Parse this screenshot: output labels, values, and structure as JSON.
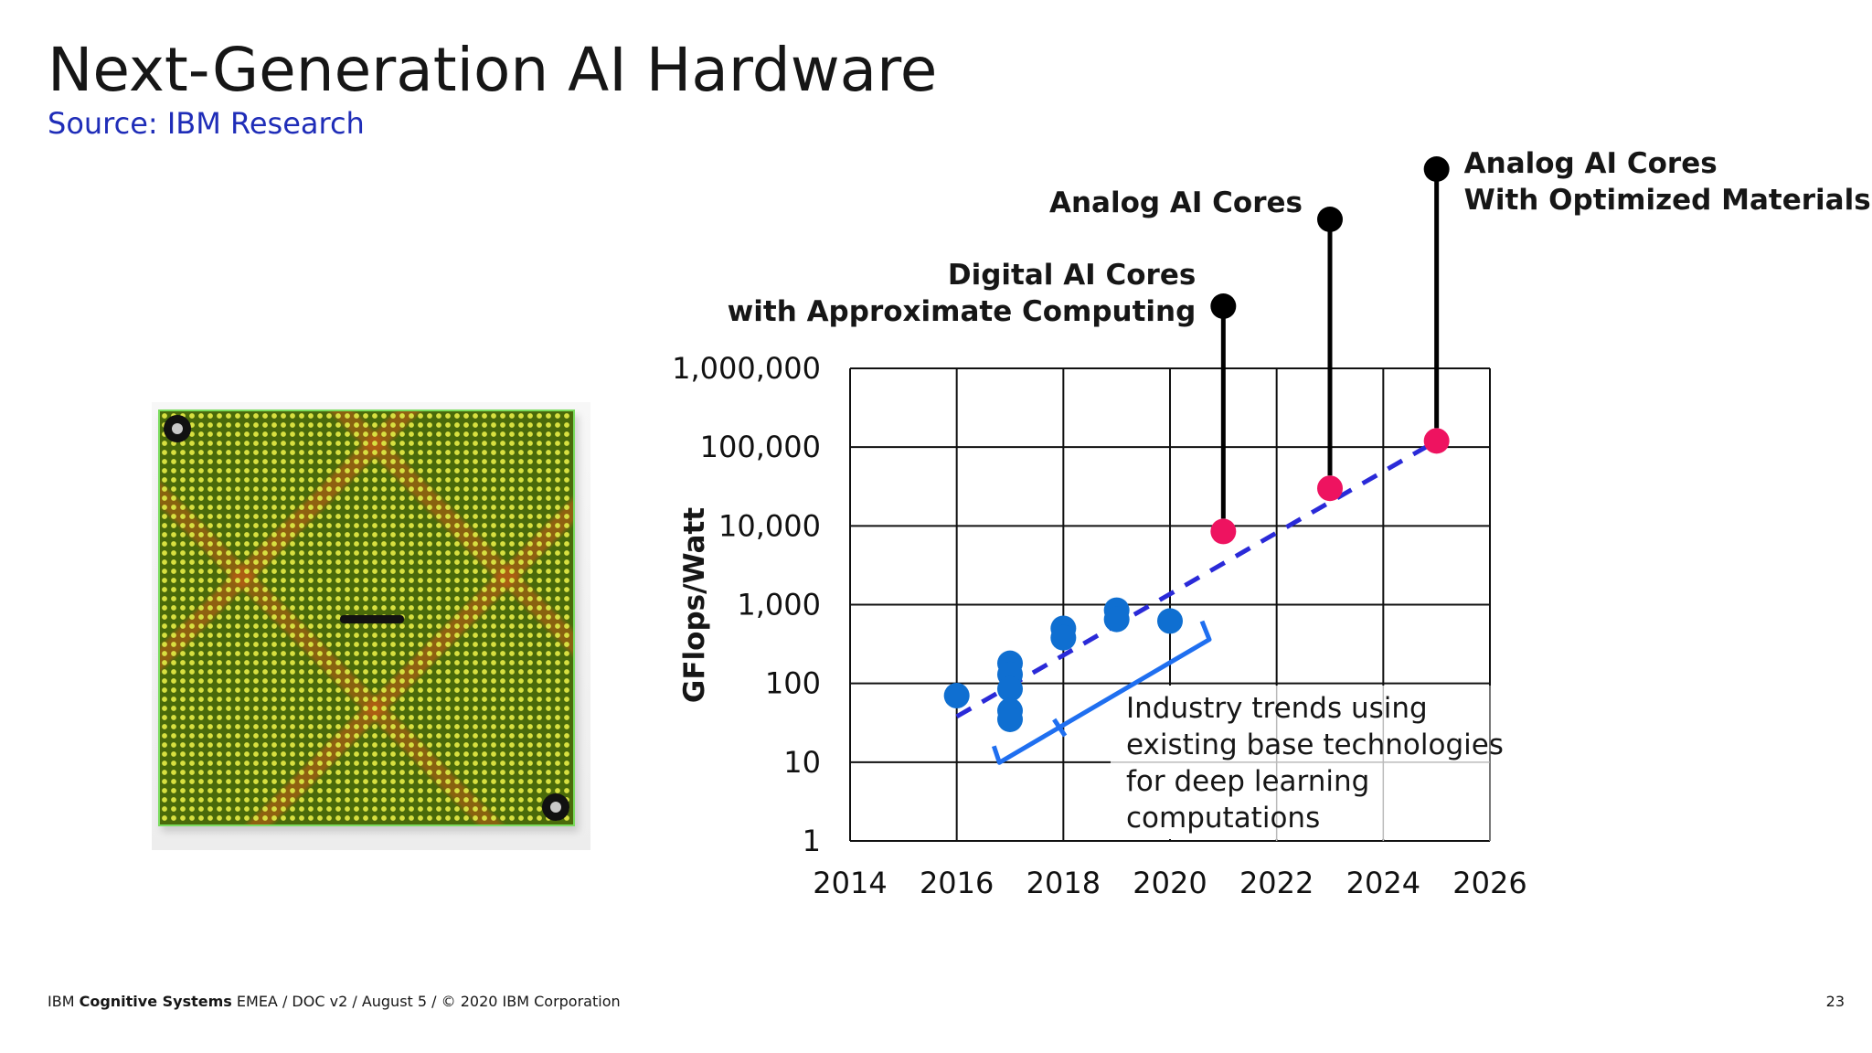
{
  "slide": {
    "title": "Next-Generation AI Hardware",
    "source": "Source: IBM Research",
    "footer_prefix": "IBM ",
    "footer_bold": "Cognitive Systems",
    "footer_rest": " EMEA / DOC v2 / August 5 / © 2020 IBM Corporation",
    "page_number": "23"
  },
  "chart_data": {
    "type": "scatter",
    "ylabel": "GFlops/Watt",
    "xlabel": "",
    "x_ticks": [
      "2014",
      "2016",
      "2018",
      "2020",
      "2022",
      "2024",
      "2026"
    ],
    "y_ticks": [
      "1",
      "10",
      "100",
      "1,000",
      "10,000",
      "100,000",
      "1,000,000"
    ],
    "xlim": [
      2014,
      2026
    ],
    "ylim": [
      1,
      1000000
    ],
    "y_scale": "log",
    "grid": true,
    "colors": {
      "industry": "#0f6fd1",
      "ibm": "#ee1360",
      "trend": "#2a2ad8",
      "bracket": "#1f6ff0"
    },
    "series": [
      {
        "name": "",
        "color": "#0f6fd1",
        "points": [
          {
            "x": 2016,
            "y": 70
          },
          {
            "x": 2017,
            "y": 180
          },
          {
            "x": 2017,
            "y": 130
          },
          {
            "x": 2017,
            "y": 85
          },
          {
            "x": 2017,
            "y": 45
          },
          {
            "x": 2017,
            "y": 35
          },
          {
            "x": 2018,
            "y": 500
          },
          {
            "x": 2018,
            "y": 380
          },
          {
            "x": 2019,
            "y": 850
          },
          {
            "x": 2019,
            "y": 650
          },
          {
            "x": 2020,
            "y": 620
          }
        ]
      },
      {
        "name": "",
        "color": "#ee1360",
        "points": [
          {
            "x": 2021,
            "y": 8500
          },
          {
            "x": 2023,
            "y": 30000
          },
          {
            "x": 2025,
            "y": 120000
          }
        ]
      }
    ],
    "trend_line": {
      "from": {
        "x": 2016,
        "y": 38
      },
      "to": {
        "x": 2025,
        "y": 120000
      }
    },
    "annotations": [
      {
        "lines": [
          "Digital AI Cores",
          "with Approximate Computing"
        ],
        "x": 2021,
        "y": 8500,
        "anchor": "end"
      },
      {
        "lines": [
          "Analog AI Cores"
        ],
        "x": 2023,
        "y": 30000,
        "anchor": "end"
      },
      {
        "lines": [
          "Analog AI Cores",
          "With Optimized Materials"
        ],
        "x": 2025,
        "y": 120000,
        "anchor": "start"
      }
    ],
    "trend_text": [
      "Industry trends using",
      "existing base technologies",
      "for deep learning",
      "computations"
    ]
  }
}
